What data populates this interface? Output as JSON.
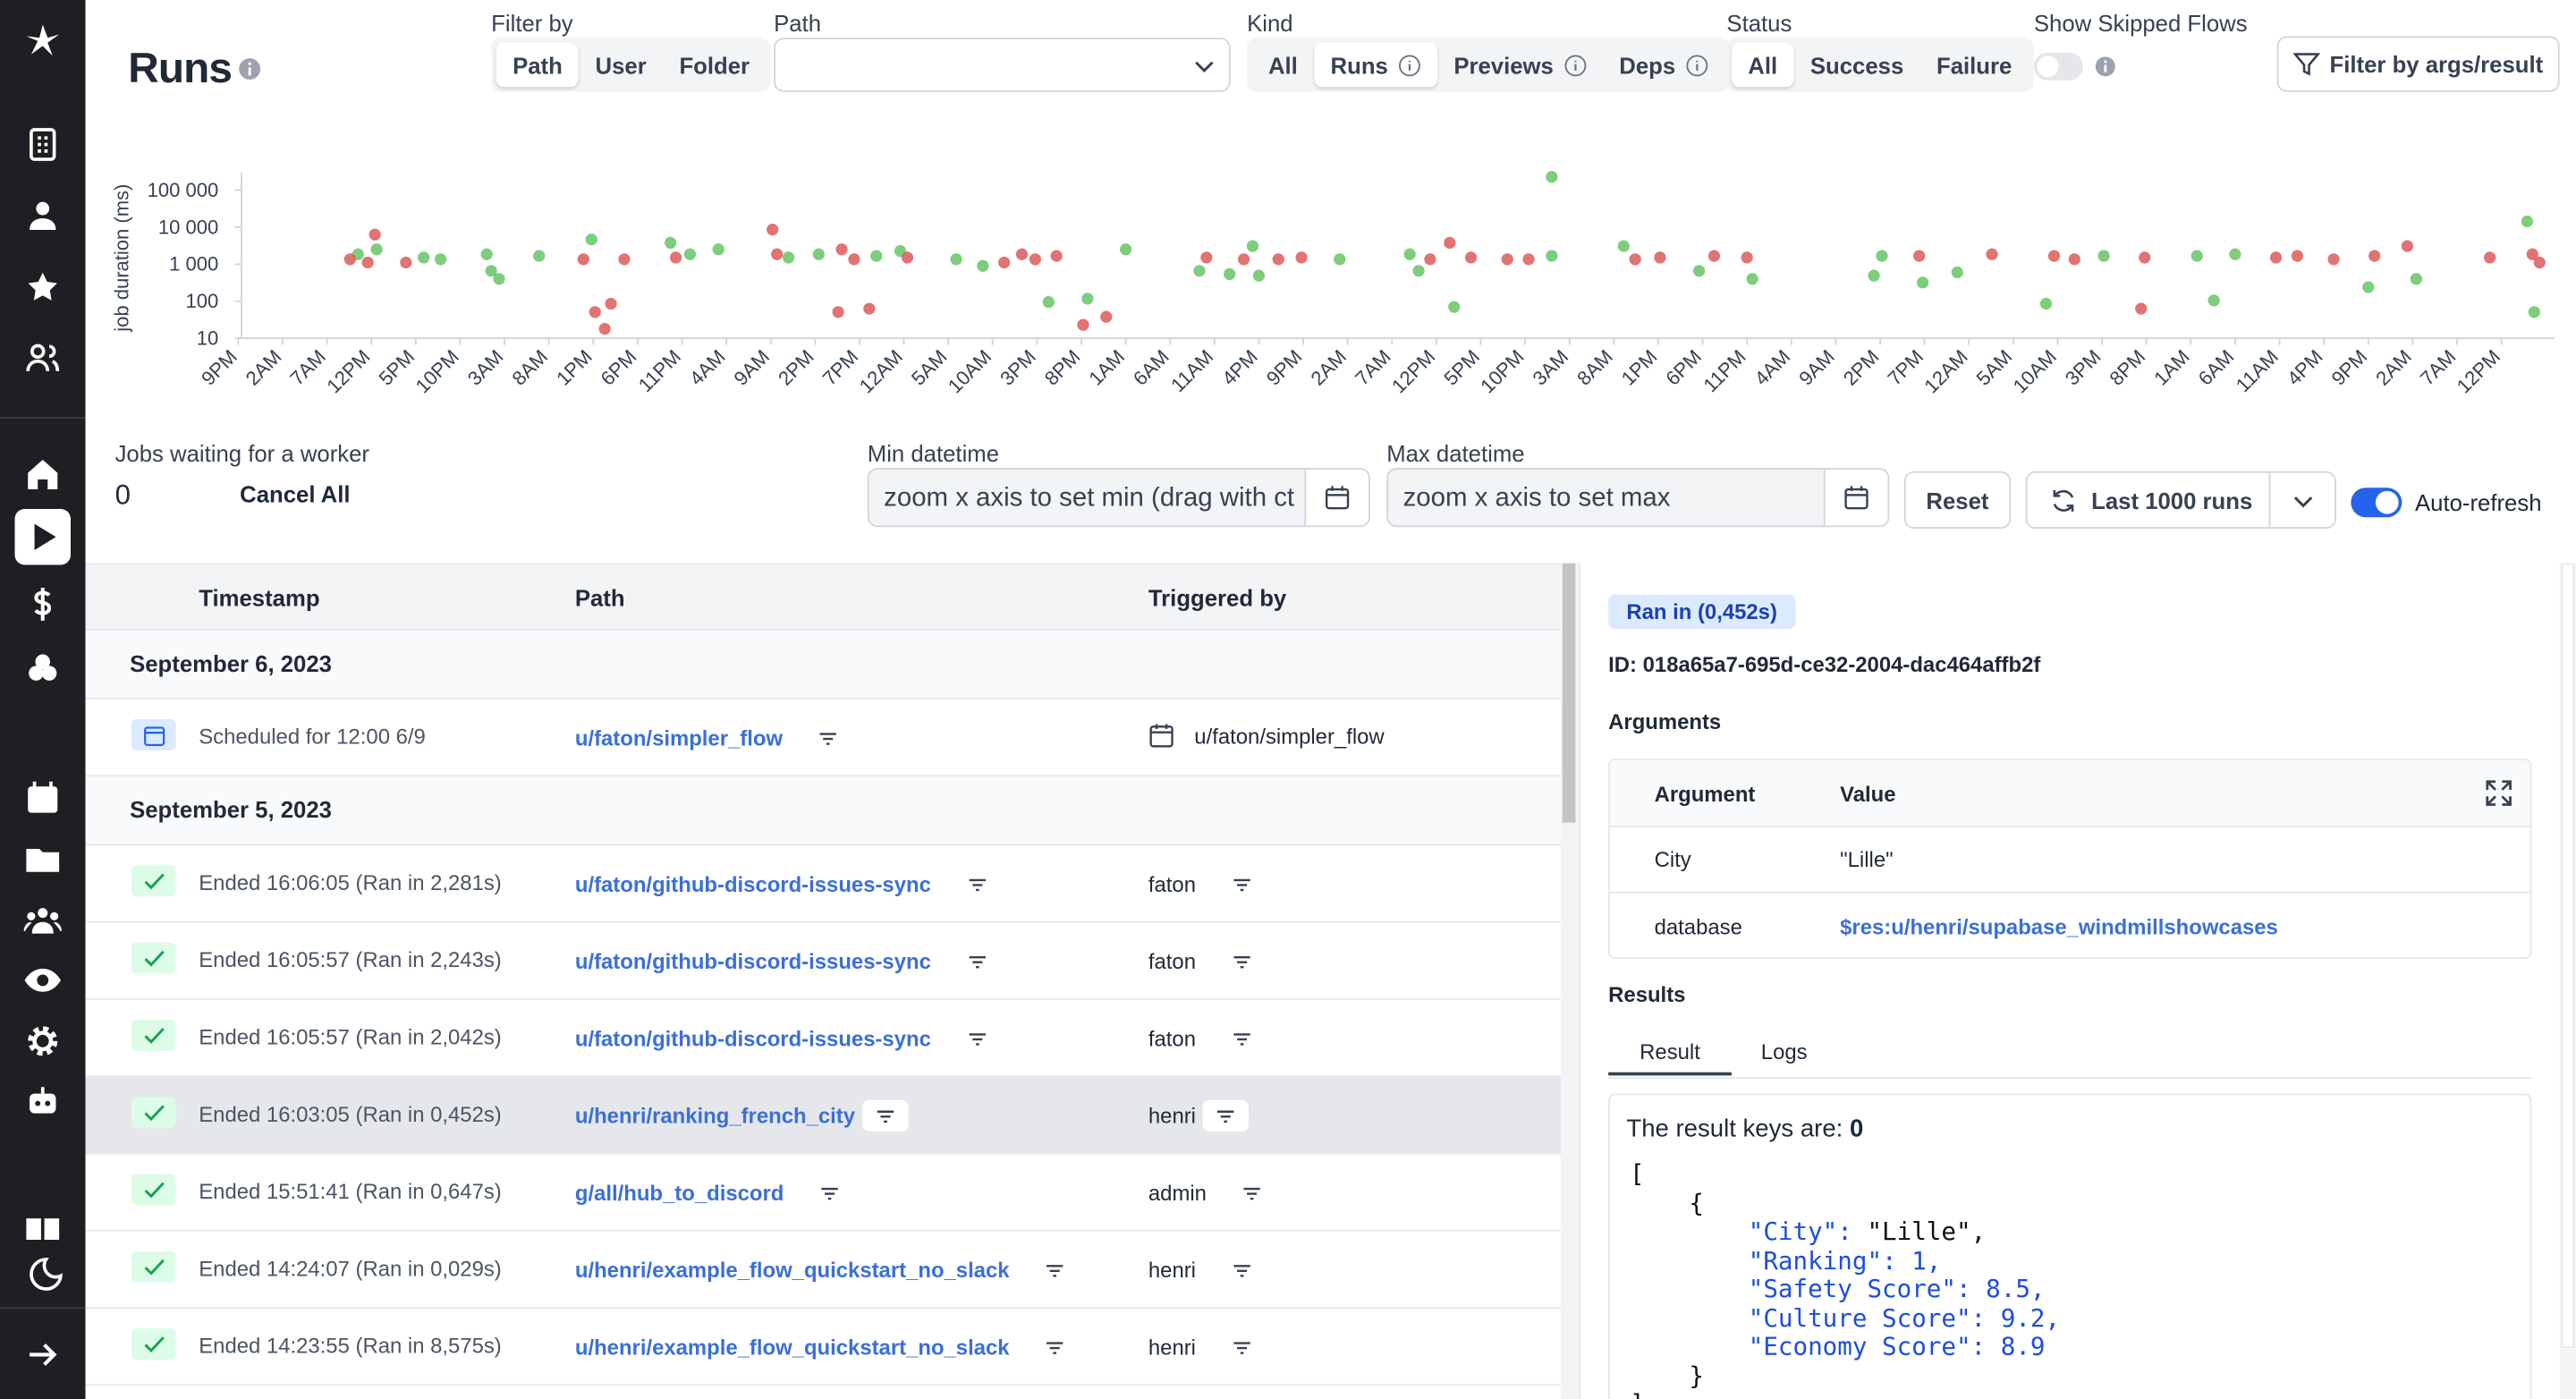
{
  "header": {
    "title": "Runs",
    "filter_by": {
      "label": "Filter by",
      "options": [
        "Path",
        "User",
        "Folder"
      ],
      "selected": 0
    },
    "path": {
      "label": "Path"
    },
    "kind": {
      "label": "Kind",
      "options": [
        "All",
        "Runs",
        "Previews",
        "Deps"
      ],
      "selected": 1
    },
    "status": {
      "label": "Status",
      "options": [
        "All",
        "Success",
        "Failure"
      ],
      "selected": 0
    },
    "skipped": {
      "label": "Show Skipped Flows"
    },
    "filter_button": "Filter by args/result"
  },
  "chart_data": {
    "type": "scatter",
    "y_label": "job duration (ms)",
    "log_y": true,
    "xlim": [
      0,
      261
    ],
    "ylim": [
      10,
      300000
    ],
    "yticks": [
      10,
      100,
      {
        "value": 1000,
        "label": "1 000"
      },
      {
        "value": 10000,
        "label": "10 000"
      },
      {
        "value": 100000,
        "label": "100 000"
      }
    ],
    "xticks": [
      {
        "value": 0,
        "label": "9PM"
      },
      {
        "value": 5,
        "label": "2AM"
      },
      {
        "value": 10,
        "label": "7AM"
      },
      {
        "value": 15,
        "label": "12PM"
      },
      {
        "value": 20,
        "label": "5PM"
      },
      {
        "value": 25,
        "label": "10PM"
      },
      {
        "value": 30,
        "label": "3AM"
      },
      {
        "value": 35,
        "label": "8AM"
      },
      {
        "value": 40,
        "label": "1PM"
      },
      {
        "value": 45,
        "label": "6PM"
      },
      {
        "value": 50,
        "label": "11PM"
      },
      {
        "value": 55,
        "label": "4AM"
      },
      {
        "value": 60,
        "label": "9AM"
      },
      {
        "value": 65,
        "label": "2PM"
      },
      {
        "value": 70,
        "label": "7PM"
      },
      {
        "value": 75,
        "label": "12AM"
      },
      {
        "value": 80,
        "label": "5AM"
      },
      {
        "value": 85,
        "label": "10AM"
      },
      {
        "value": 90,
        "label": "3PM"
      },
      {
        "value": 95,
        "label": "8PM"
      },
      {
        "value": 100,
        "label": "1AM"
      },
      {
        "value": 105,
        "label": "6AM"
      },
      {
        "value": 110,
        "label": "11AM"
      },
      {
        "value": 115,
        "label": "4PM"
      },
      {
        "value": 120,
        "label": "9PM"
      },
      {
        "value": 125,
        "label": "2AM"
      },
      {
        "value": 130,
        "label": "7AM"
      },
      {
        "value": 135,
        "label": "12PM"
      },
      {
        "value": 140,
        "label": "5PM"
      },
      {
        "value": 145,
        "label": "10PM"
      },
      {
        "value": 150,
        "label": "3AM"
      },
      {
        "value": 155,
        "label": "8AM"
      },
      {
        "value": 160,
        "label": "1PM"
      },
      {
        "value": 165,
        "label": "6PM"
      },
      {
        "value": 170,
        "label": "11PM"
      },
      {
        "value": 175,
        "label": "4AM"
      },
      {
        "value": 180,
        "label": "9AM"
      },
      {
        "value": 185,
        "label": "2PM"
      },
      {
        "value": 190,
        "label": "7PM"
      },
      {
        "value": 195,
        "label": "12AM"
      },
      {
        "value": 200,
        "label": "5AM"
      },
      {
        "value": 205,
        "label": "10AM"
      },
      {
        "value": 210,
        "label": "3PM"
      },
      {
        "value": 215,
        "label": "8PM"
      },
      {
        "value": 220,
        "label": "1AM"
      },
      {
        "value": 225,
        "label": "6AM"
      },
      {
        "value": 230,
        "label": "11AM"
      },
      {
        "value": 235,
        "label": "4PM"
      },
      {
        "value": 240,
        "label": "9PM"
      },
      {
        "value": 245,
        "label": "2AM"
      },
      {
        "value": 250,
        "label": "7AM"
      },
      {
        "value": 255,
        "label": "12PM"
      }
    ],
    "series": [
      {
        "color": "#66c466",
        "x": [
          13.5,
          15.6,
          20.9,
          22.8,
          28.0,
          28.5,
          29.4,
          33.9,
          39.8,
          48.7,
          50.9,
          54.1,
          62.0,
          65.4,
          71.9,
          74.6,
          80.9,
          83.9,
          91.3,
          95.7,
          100.0,
          108.3,
          111.7,
          114.3,
          115.0,
          124.1,
          132.0,
          133.0,
          137.0,
          148.0,
          148.0,
          156.1,
          164.6,
          170.6,
          184.3,
          185.2,
          189.8,
          193.7,
          203.7,
          210.2,
          220.7,
          222.6,
          225.0,
          240.0,
          245.4,
          257.9,
          258.7
        ],
        "values": [
          1850,
          2510,
          1510,
          1360,
          1850,
          660,
          400,
          1670,
          4640,
          3780,
          1850,
          2510,
          1510,
          1850,
          1670,
          2270,
          1360,
          900,
          95,
          117,
          2510,
          660,
          540,
          3080,
          490,
          1360,
          1850,
          660,
          70,
          227000,
          1670,
          3080,
          660,
          400,
          490,
          1670,
          320,
          600,
          86,
          1670,
          1670,
          105,
          1850,
          240,
          400,
          14300,
          51
        ]
      },
      {
        "color": "#dd5b5b",
        "x": [
          12.6,
          14.6,
          15.4,
          18.9,
          38.9,
          40.2,
          41.3,
          42.0,
          43.5,
          49.3,
          60.2,
          60.7,
          67.6,
          68.0,
          69.4,
          71.1,
          75.4,
          86.3,
          88.3,
          89.8,
          92.2,
          95.2,
          97.8,
          109.1,
          113.3,
          117.2,
          119.8,
          134.3,
          136.5,
          138.9,
          143.0,
          145.4,
          157.4,
          160.2,
          166.3,
          170.0,
          189.4,
          197.6,
          204.6,
          206.9,
          214.4,
          214.8,
          229.6,
          232.0,
          236.1,
          240.7,
          244.4,
          253.7,
          258.5,
          259.3
        ],
        "values": [
          1360,
          1110,
          6300,
          1110,
          1360,
          51,
          18,
          86,
          1360,
          1510,
          8600,
          1850,
          51,
          2510,
          1360,
          63,
          1510,
          1110,
          1850,
          1360,
          1670,
          23,
          38,
          1510,
          1360,
          1360,
          1510,
          1360,
          3780,
          1510,
          1360,
          1360,
          1360,
          1510,
          1670,
          1510,
          1670,
          1850,
          1670,
          1360,
          63,
          1510,
          1510,
          1670,
          1360,
          1670,
          3080,
          1510,
          1850,
          1110
        ]
      }
    ]
  },
  "controls": {
    "waiting_label": "Jobs waiting for a worker",
    "waiting_count": 0,
    "cancel": "Cancel All",
    "min_label": "Min datetime",
    "min_placeholder": "zoom x axis to set min (drag with ct",
    "max_label": "Max datetime",
    "max_placeholder": "zoom x axis to set max",
    "reset": "Reset",
    "last_runs": "Last 1000 runs",
    "auto_refresh": "Auto-refresh"
  },
  "table": {
    "headers": [
      "Timestamp",
      "Path",
      "Triggered by"
    ],
    "groups": [
      {
        "date": "September 6, 2023",
        "rows": [
          {
            "status": "scheduled",
            "timestamp": "Scheduled for 12:00 6/9",
            "path": "u/faton/simpler_flow",
            "triggered_by": "u/faton/simpler_flow"
          }
        ]
      },
      {
        "date": "September 5, 2023",
        "rows": [
          {
            "status": "success",
            "timestamp": "Ended 16:06:05 (Ran in 2,281s)",
            "path": "u/faton/github-discord-issues-sync",
            "triggered_by": "faton"
          },
          {
            "status": "success",
            "timestamp": "Ended 16:05:57 (Ran in 2,243s)",
            "path": "u/faton/github-discord-issues-sync",
            "triggered_by": "faton"
          },
          {
            "status": "success",
            "timestamp": "Ended 16:05:57 (Ran in 2,042s)",
            "path": "u/faton/github-discord-issues-sync",
            "triggered_by": "faton"
          },
          {
            "status": "success",
            "timestamp": "Ended 16:03:05 (Ran in 0,452s)",
            "path": "u/henri/ranking_french_city",
            "triggered_by": "henri",
            "selected": true
          },
          {
            "status": "success",
            "timestamp": "Ended 15:51:41 (Ran in 0,647s)",
            "path": "g/all/hub_to_discord",
            "triggered_by": "admin"
          },
          {
            "status": "success",
            "timestamp": "Ended 14:24:07 (Ran in 0,029s)",
            "path": "u/henri/example_flow_quickstart_no_slack",
            "triggered_by": "henri"
          },
          {
            "status": "success",
            "timestamp": "Ended 14:23:55 (Ran in 8,575s)",
            "path": "u/henri/example_flow_quickstart_no_slack",
            "triggered_by": "henri"
          }
        ]
      }
    ]
  },
  "detail": {
    "badge": "Ran in (0,452s)",
    "id": "ID: 018a65a7-695d-ce32-2004-dac464affb2f",
    "arguments_title": "Arguments",
    "args_headers": [
      "Argument",
      "Value"
    ],
    "args": [
      [
        "City",
        "\"Lille\""
      ],
      [
        "database",
        "$res:u/henri/supabase_windmillshowcases"
      ]
    ],
    "results_title": "Results",
    "tabs": [
      "Result",
      "Logs"
    ],
    "result_keys_label": "The result keys are:",
    "result_keys_value": "0",
    "json_open": "[",
    "obj_open": "{",
    "entries": [
      {
        "key": "\"City\":",
        "value": "\"Lille\","
      },
      {
        "key": "\"Ranking\":",
        "value": "1,"
      },
      {
        "key": "\"Safety Score\":",
        "value": "8.5,"
      },
      {
        "key": "\"Culture Score\":",
        "value": "9.2,"
      },
      {
        "key": "\"Economy Score\":",
        "value": "8.9"
      }
    ],
    "obj_close": "}",
    "json_close": "]"
  }
}
